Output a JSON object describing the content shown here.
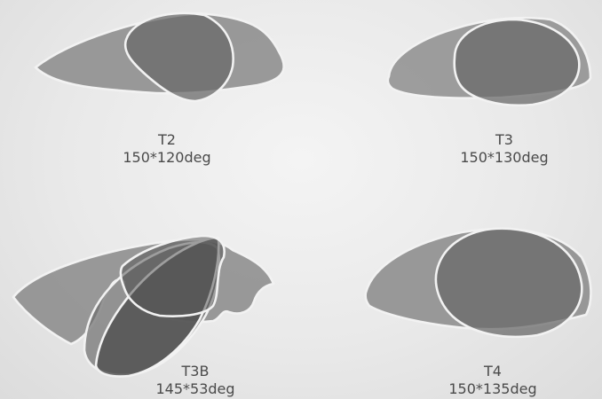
{
  "panels": [
    {
      "code": "T2",
      "size": "150*120deg"
    },
    {
      "code": "T3",
      "size": "150*130deg"
    },
    {
      "code": "T3B",
      "size": "145*53deg"
    },
    {
      "code": "T4",
      "size": "150*135deg"
    }
  ]
}
